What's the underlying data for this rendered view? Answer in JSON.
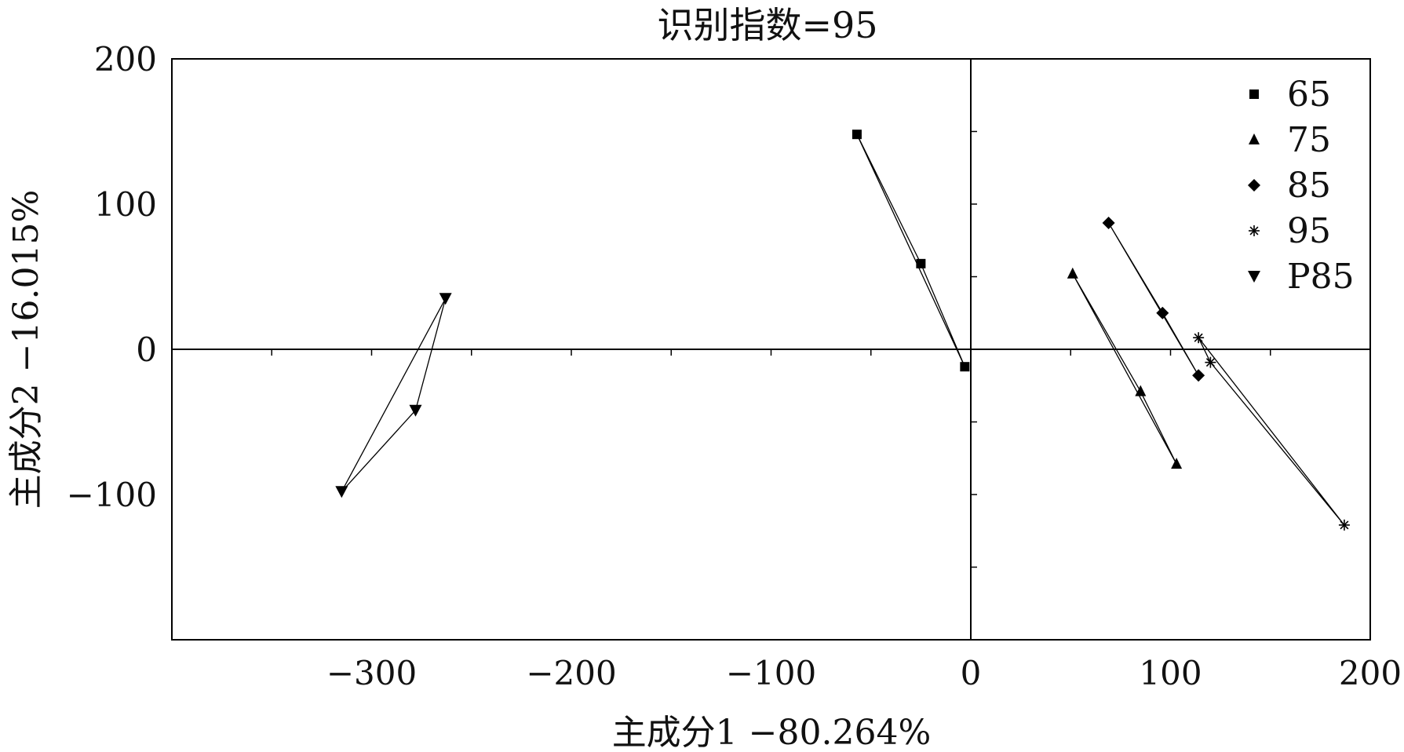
{
  "chart_data": {
    "type": "scatter",
    "title": "识别指数=95",
    "xlabel": "主成分1 −80.264%",
    "ylabel": "主成分2 −16.015%",
    "xlim": [
      -400,
      200
    ],
    "ylim": [
      -200,
      200
    ],
    "x_ticks": [
      -300,
      -200,
      -100,
      0,
      100,
      200
    ],
    "y_ticks": [
      -100,
      0,
      100,
      200
    ],
    "x_tick_labels": [
      "−300",
      "−200",
      "−100",
      "0",
      "100",
      "200"
    ],
    "y_tick_labels": [
      "−100",
      "0",
      "100",
      "200"
    ],
    "grid": false,
    "legend_position": "top-right",
    "series": [
      {
        "name": "65",
        "marker": "square",
        "points": [
          [
            -57,
            148
          ],
          [
            -25,
            59
          ],
          [
            -3,
            -12
          ]
        ]
      },
      {
        "name": "75",
        "marker": "triangle-up",
        "points": [
          [
            51,
            52
          ],
          [
            85,
            -29
          ],
          [
            103,
            -79
          ]
        ]
      },
      {
        "name": "85",
        "marker": "diamond",
        "points": [
          [
            69,
            87
          ],
          [
            96,
            25
          ],
          [
            114,
            -18
          ]
        ]
      },
      {
        "name": "95",
        "marker": "asterisk",
        "points": [
          [
            114,
            8
          ],
          [
            120,
            -9
          ],
          [
            187,
            -121
          ]
        ]
      },
      {
        "name": "P85",
        "marker": "triangle-down",
        "points": [
          [
            -263,
            35
          ],
          [
            -278,
            -42
          ],
          [
            -315,
            -98
          ]
        ]
      }
    ]
  }
}
